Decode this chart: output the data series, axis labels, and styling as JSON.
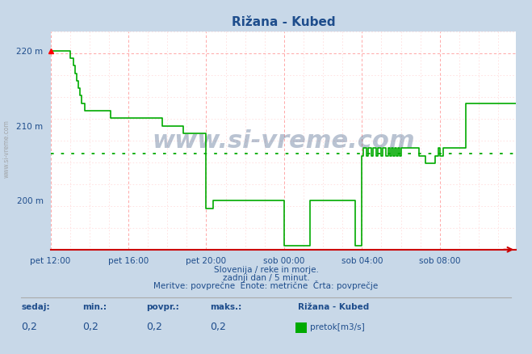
{
  "title": "Rižana - Kubed",
  "title_color": "#1e4d8c",
  "bg_color": "#c8d8e8",
  "plot_bg_color": "#ffffff",
  "grid_color_major": "#ff9999",
  "grid_color_minor": "#ffcccc",
  "avg_line_color": "#00aa00",
  "avg_line_value": 206.3,
  "line_color": "#00aa00",
  "line_width": 1.2,
  "ylim": [
    193.5,
    222.5
  ],
  "yticks": [
    200,
    210,
    220
  ],
  "ytick_labels": [
    "200 m",
    "210 m",
    "220 m"
  ],
  "xtick_labels": [
    "pet 12:00",
    "pet 16:00",
    "pet 20:00",
    "sob 00:00",
    "sob 04:00",
    "sob 08:00"
  ],
  "xtick_positions": [
    0,
    48,
    96,
    144,
    192,
    240
  ],
  "total_points": 288,
  "watermark": "www.si-vreme.com",
  "watermark_color": "#1a3a6a",
  "subtitle1": "Slovenija / reke in morje.",
  "subtitle2": "zadnji dan / 5 minut.",
  "subtitle3": "Meritve: povprečne  Enote: metrične  Črta: povprečje",
  "legend_title": "Rižana - Kubed",
  "legend_label": "pretok[m3/s]",
  "stats_labels": [
    "sedaj:",
    "min.:",
    "povpr.:",
    "maks.:"
  ],
  "stats_values": [
    "0,2",
    "0,2",
    "0,2",
    "0,2"
  ],
  "axis_color": "#cc0000",
  "tick_color": "#1e4d8c",
  "side_watermark": "www.si-vreme.com",
  "data_y": [
    220,
    220,
    220,
    220,
    220,
    220,
    220,
    220,
    220,
    220,
    220,
    220,
    219,
    219,
    218,
    217,
    216,
    215,
    214,
    213,
    213,
    212,
    212,
    212,
    212,
    212,
    212,
    212,
    212,
    212,
    212,
    212,
    212,
    212,
    212,
    212,
    212,
    211,
    211,
    211,
    211,
    211,
    211,
    211,
    211,
    211,
    211,
    211,
    211,
    211,
    211,
    211,
    211,
    211,
    211,
    211,
    211,
    211,
    211,
    211,
    211,
    211,
    211,
    211,
    211,
    211,
    211,
    211,
    211,
    210,
    210,
    210,
    210,
    210,
    210,
    210,
    210,
    210,
    210,
    210,
    210,
    210,
    209,
    209,
    209,
    209,
    209,
    209,
    209,
    209,
    209,
    209,
    209,
    209,
    209,
    209,
    199,
    199,
    199,
    199,
    200,
    200,
    200,
    200,
    200,
    200,
    200,
    200,
    200,
    200,
    200,
    200,
    200,
    200,
    200,
    200,
    200,
    200,
    200,
    200,
    200,
    200,
    200,
    200,
    200,
    200,
    200,
    200,
    200,
    200,
    200,
    200,
    200,
    200,
    200,
    200,
    200,
    200,
    200,
    200,
    200,
    200,
    200,
    200,
    194,
    194,
    194,
    194,
    194,
    194,
    194,
    194,
    194,
    194,
    194,
    194,
    194,
    194,
    194,
    194,
    200,
    200,
    200,
    200,
    200,
    200,
    200,
    200,
    200,
    200,
    200,
    200,
    200,
    200,
    200,
    200,
    200,
    200,
    200,
    200,
    200,
    200,
    200,
    200,
    200,
    200,
    200,
    200,
    194,
    194,
    194,
    194,
    206,
    207,
    207,
    206,
    207,
    207,
    206,
    207,
    207,
    206,
    207,
    207,
    206,
    207,
    207,
    206,
    207,
    206,
    207,
    206,
    207,
    206,
    207,
    206,
    207,
    207,
    207,
    207,
    207,
    207,
    207,
    207,
    207,
    207,
    207,
    206,
    206,
    206,
    206,
    205,
    205,
    205,
    205,
    205,
    205,
    206,
    206,
    207,
    206,
    206,
    207,
    207,
    207,
    207,
    207,
    207,
    207,
    207,
    207,
    207,
    207,
    207,
    207,
    207,
    213,
    213,
    213,
    213,
    213,
    213,
    213,
    213,
    213,
    213,
    213,
    213,
    213,
    213,
    213,
    213,
    213,
    213,
    213,
    213,
    213,
    213,
    213,
    213,
    213,
    213,
    213,
    213,
    213,
    213,
    213,
    213
  ]
}
